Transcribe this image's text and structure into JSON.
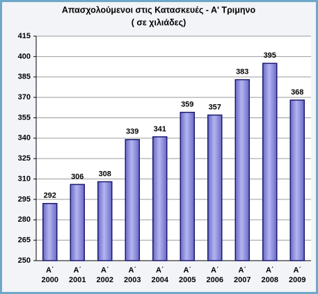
{
  "chart_data": {
    "type": "bar",
    "title": "Απασχολούμενοι στις Κατασκευές - Α' Τριμηνο",
    "subtitle": "( σε χιλιάδες)",
    "categories": [
      [
        "Α΄",
        "2000"
      ],
      [
        "Α΄",
        "2001"
      ],
      [
        "Α΄",
        "2002"
      ],
      [
        "Α΄",
        "2003"
      ],
      [
        "Α΄",
        "2004"
      ],
      [
        "Α΄",
        "2005"
      ],
      [
        "Α΄",
        "2006"
      ],
      [
        "Α΄",
        "2007"
      ],
      [
        "Α΄",
        "2008"
      ],
      [
        "Α΄",
        "2009"
      ]
    ],
    "values": [
      292,
      306,
      308,
      339,
      341,
      359,
      357,
      383,
      395,
      368
    ],
    "color": "#9a9ae0",
    "ylim": [
      250,
      415
    ],
    "yticks": [
      250,
      265,
      280,
      295,
      310,
      325,
      340,
      355,
      370,
      385,
      400,
      415
    ],
    "grid": true
  }
}
